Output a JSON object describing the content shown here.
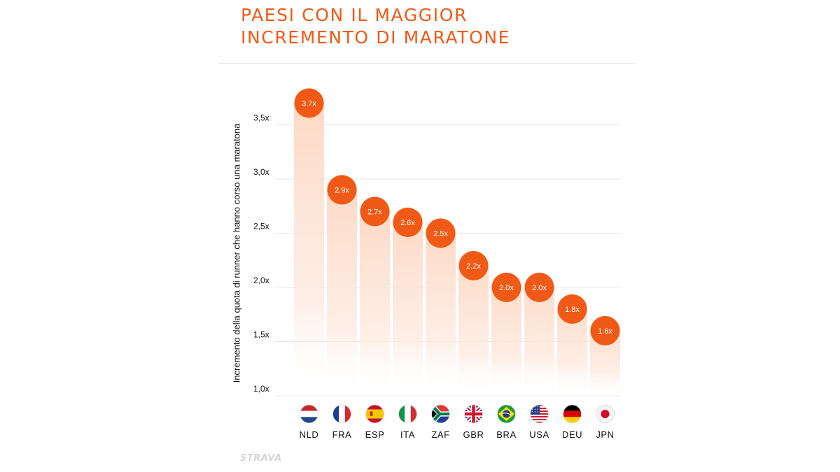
{
  "title_line1": "PAESI CON IL MAGGIOR",
  "title_line2": "INCREMENTO DI MARATONE",
  "watermark": "STRAVA",
  "chart_data": {
    "type": "bar",
    "ylabel": "Incremento della quota di runner che hanno corso una maratona",
    "xlabel": "",
    "ylim": [
      1.0,
      3.7
    ],
    "yticks": [
      1.0,
      1.5,
      2.0,
      2.5,
      3.0,
      3.5
    ],
    "ytick_labels": [
      "1,0x",
      "1,5x",
      "2,0x",
      "2,5x",
      "3,0x",
      "3,5x"
    ],
    "grid": true,
    "categories": [
      "NLD",
      "FRA",
      "ESP",
      "ITA",
      "ZAF",
      "GBR",
      "BRA",
      "USA",
      "DEU",
      "JPN"
    ],
    "values": [
      3.7,
      2.9,
      2.7,
      2.6,
      2.5,
      2.2,
      2.0,
      2.0,
      1.8,
      1.6
    ],
    "data_labels": [
      "3.7x",
      "2.9x",
      "2.7x",
      "2.6x",
      "2.5x",
      "2.2x",
      "2.0x",
      "2.0x",
      "1.8x",
      "1.6x"
    ],
    "flag_icons": [
      "flag-nld-icon",
      "flag-fra-icon",
      "flag-esp-icon",
      "flag-ita-icon",
      "flag-zaf-icon",
      "flag-gbr-icon",
      "flag-bra-icon",
      "flag-usa-icon",
      "flag-deu-icon",
      "flag-jpn-icon"
    ],
    "colors": {
      "accent": "#f05a16",
      "bar_top": "#fdd7c2",
      "grid": "#e6e6e6"
    }
  }
}
